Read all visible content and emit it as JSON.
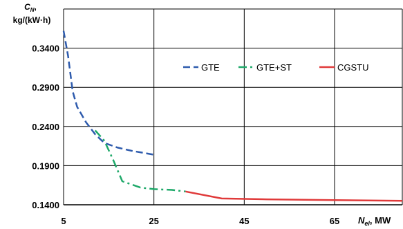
{
  "chart_data": {
    "type": "line",
    "ylabel": {
      "symbol": "C",
      "sub": "N",
      "unit": "kg/(kW·h)"
    },
    "xlabel": {
      "symbol": "N",
      "sub": "el",
      "unit": "MW"
    },
    "xlim": [
      5,
      80
    ],
    "ylim": [
      0.14,
      0.39
    ],
    "x_ticks": [
      5,
      25,
      45,
      65
    ],
    "y_ticks": [
      0.14,
      0.19,
      0.24,
      0.29,
      0.34
    ],
    "x_tick_labels": [
      "5",
      "25",
      "45",
      "65"
    ],
    "y_tick_labels": [
      "0.1400",
      "0.1900",
      "0.2400",
      "0.2900",
      "0.3400"
    ],
    "x_grid": [
      5,
      25,
      45,
      65,
      80
    ],
    "grid": true,
    "legend_position": "top-right",
    "series": [
      {
        "name": "GTE",
        "color": "#2E5BAD",
        "dash": "dashed",
        "points": [
          [
            5,
            0.362
          ],
          [
            6,
            0.33
          ],
          [
            7,
            0.285
          ],
          [
            8,
            0.265
          ],
          [
            10,
            0.245
          ],
          [
            12,
            0.23
          ],
          [
            14,
            0.219
          ],
          [
            17,
            0.213
          ],
          [
            20,
            0.209
          ],
          [
            25,
            0.204
          ]
        ]
      },
      {
        "name": "GTE+ST",
        "color": "#1FA96A",
        "dash": "dashdot",
        "points": [
          [
            12,
            0.235
          ],
          [
            14,
            0.222
          ],
          [
            16,
            0.197
          ],
          [
            18,
            0.17
          ],
          [
            22,
            0.162
          ],
          [
            25,
            0.16
          ],
          [
            29,
            0.159
          ],
          [
            32,
            0.157
          ]
        ]
      },
      {
        "name": "CGSTU",
        "color": "#E03A3A",
        "dash": "solid",
        "points": [
          [
            32,
            0.157
          ],
          [
            40,
            0.148
          ],
          [
            50,
            0.147
          ],
          [
            65,
            0.146
          ],
          [
            80,
            0.145
          ]
        ]
      }
    ]
  }
}
